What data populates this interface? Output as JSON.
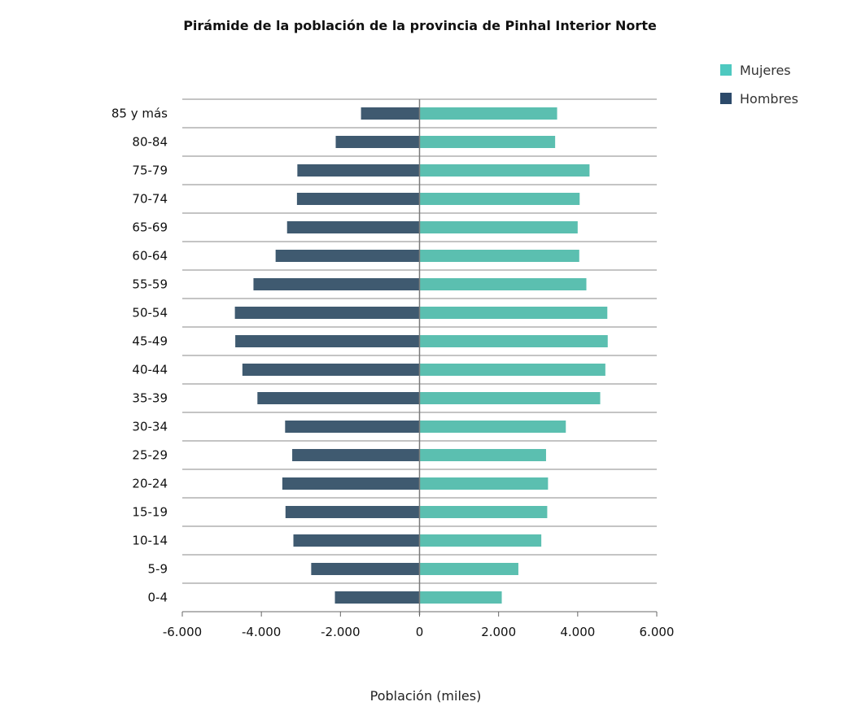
{
  "chart_data": {
    "type": "bar",
    "orientation": "horizontal",
    "title": "Pirámide de la población de la provincia de Pinhal Interior Norte",
    "xlabel": "Población (miles)",
    "ylabel": "",
    "xlim": [
      -6000,
      6000
    ],
    "x_ticks": [
      -6000,
      -4000,
      -2000,
      0,
      2000,
      4000,
      6000
    ],
    "x_tick_labels": [
      "-6.000",
      "-4.000",
      "-2.000",
      "0",
      "2.000",
      "4.000",
      "6.000"
    ],
    "grid": "horizontal",
    "legend_position": "top-right",
    "categories": [
      "85 y más",
      "80-84",
      "75-79",
      "70-74",
      "65-69",
      "60-64",
      "55-59",
      "50-54",
      "45-49",
      "40-44",
      "35-39",
      "30-34",
      "25-29",
      "20-24",
      "15-19",
      "10-14",
      "5-9",
      "0-4"
    ],
    "series": [
      {
        "name": "Mujeres",
        "color": "#5bbfb0",
        "values": [
          3480,
          3430,
          4300,
          4050,
          4000,
          4040,
          4220,
          4750,
          4760,
          4700,
          4570,
          3700,
          3200,
          3250,
          3230,
          3080,
          2500,
          2080
        ]
      },
      {
        "name": "Hombres",
        "color": "#3f5a70",
        "values": [
          -1480,
          -2120,
          -3090,
          -3100,
          -3350,
          -3640,
          -4200,
          -4670,
          -4660,
          -4480,
          -4100,
          -3400,
          -3220,
          -3470,
          -3390,
          -3190,
          -2740,
          -2140
        ]
      }
    ]
  },
  "legend": {
    "mujeres": "Mujeres",
    "hombres": "Hombres",
    "mujeres_color": "#4ec9c0",
    "hombres_color": "#2c4a6a"
  }
}
